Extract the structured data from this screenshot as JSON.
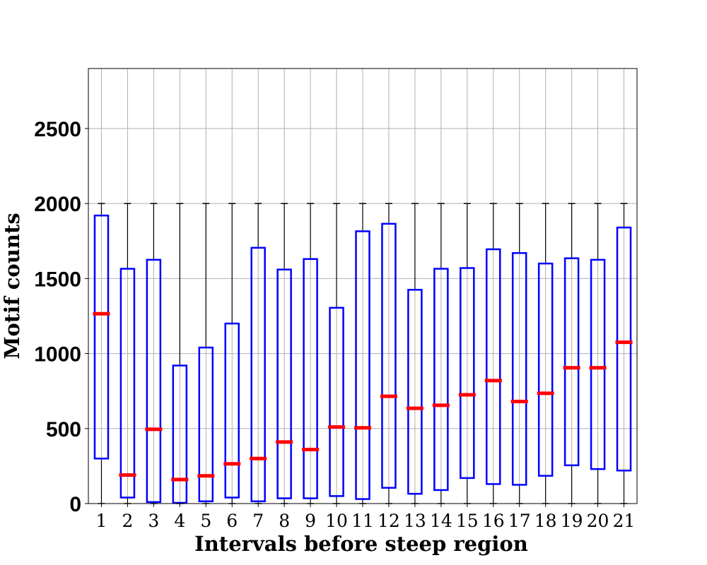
{
  "chart_data": {
    "type": "boxplot",
    "title": "",
    "xlabel": "Intervals before steep region",
    "ylabel": "Motif counts",
    "ylim": [
      0,
      2900
    ],
    "yticks": [
      0,
      500,
      1000,
      1500,
      2000,
      2500
    ],
    "grid": true,
    "legend": "none",
    "categories": [
      "1",
      "2",
      "3",
      "4",
      "5",
      "6",
      "7",
      "8",
      "9",
      "10",
      "11",
      "12",
      "13",
      "14",
      "15",
      "16",
      "17",
      "18",
      "19",
      "20",
      "21"
    ],
    "whisker_low": [
      0,
      0,
      0,
      0,
      0,
      0,
      0,
      0,
      0,
      0,
      0,
      0,
      0,
      0,
      0,
      0,
      0,
      0,
      0,
      0,
      0
    ],
    "q1": [
      300,
      40,
      10,
      5,
      15,
      40,
      15,
      35,
      35,
      50,
      30,
      105,
      65,
      90,
      170,
      130,
      125,
      185,
      255,
      230,
      220
    ],
    "median": [
      1265,
      190,
      495,
      160,
      185,
      265,
      300,
      410,
      360,
      510,
      505,
      715,
      635,
      655,
      725,
      820,
      680,
      735,
      905,
      905,
      1075
    ],
    "q3": [
      1920,
      1565,
      1625,
      920,
      1040,
      1200,
      1705,
      1560,
      1630,
      1305,
      1815,
      1865,
      1425,
      1565,
      1570,
      1695,
      1670,
      1600,
      1635,
      1625,
      1840
    ],
    "whisker_high": [
      2000,
      2000,
      2000,
      2000,
      2000,
      2000,
      2000,
      2000,
      2000,
      2000,
      2000,
      2000,
      2000,
      2000,
      2000,
      2000,
      2000,
      2000,
      2000,
      2000,
      2000
    ],
    "colors": {
      "box": "#0000ff",
      "median": "#ff0000",
      "whisker": "#000000",
      "grid": "#b0b0b0"
    }
  }
}
